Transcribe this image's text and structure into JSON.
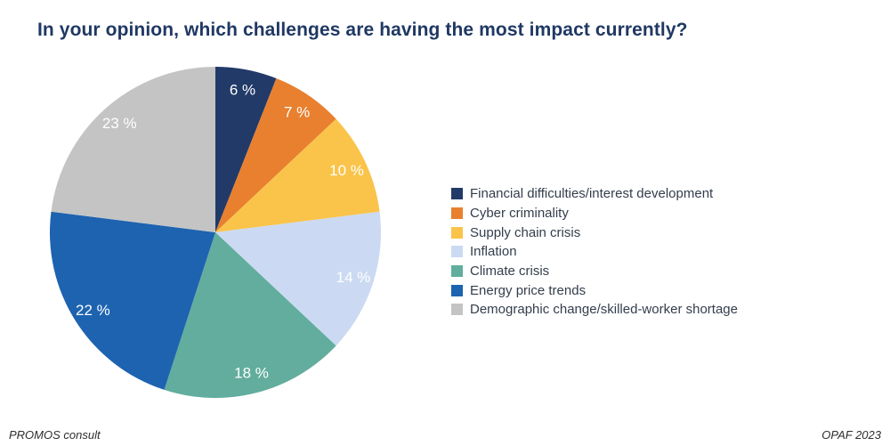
{
  "title": "In your opinion, which challenges are having the most impact currently?",
  "footer": {
    "left": "PROMOS consult",
    "right": "OPAF 2023"
  },
  "colors": {
    "title_text": "#1F3864",
    "legend_text": "#333E4C",
    "footer_text": "#2D2D2D",
    "value_label_text": "#FFFFFF",
    "background": "#FFFFFF"
  },
  "chart_data": {
    "type": "pie",
    "title": "In your opinion, which challenges are having the most impact currently?",
    "start_angle_deg": 0,
    "direction": "clockwise",
    "legend_position": "right",
    "value_labels": "inside",
    "slices": [
      {
        "label": "Financial difficulties/interest development",
        "value": 6,
        "display": "6 %",
        "color": "#223A68"
      },
      {
        "label": "Cyber criminality",
        "value": 7,
        "display": "7 %",
        "color": "#E8802F"
      },
      {
        "label": "Supply chain crisis",
        "value": 10,
        "display": "10 %",
        "color": "#FAC44A"
      },
      {
        "label": "Inflation",
        "value": 14,
        "display": "14 %",
        "color": "#CBDAF2"
      },
      {
        "label": "Climate crisis",
        "value": 18,
        "display": "18 %",
        "color": "#62AD9D"
      },
      {
        "label": "Energy price trends",
        "value": 22,
        "display": "22 %",
        "color": "#1D63B0"
      },
      {
        "label": "Demographic change/skilled-worker shortage",
        "value": 23,
        "display": "23 %",
        "color": "#C4C4C4"
      }
    ]
  }
}
